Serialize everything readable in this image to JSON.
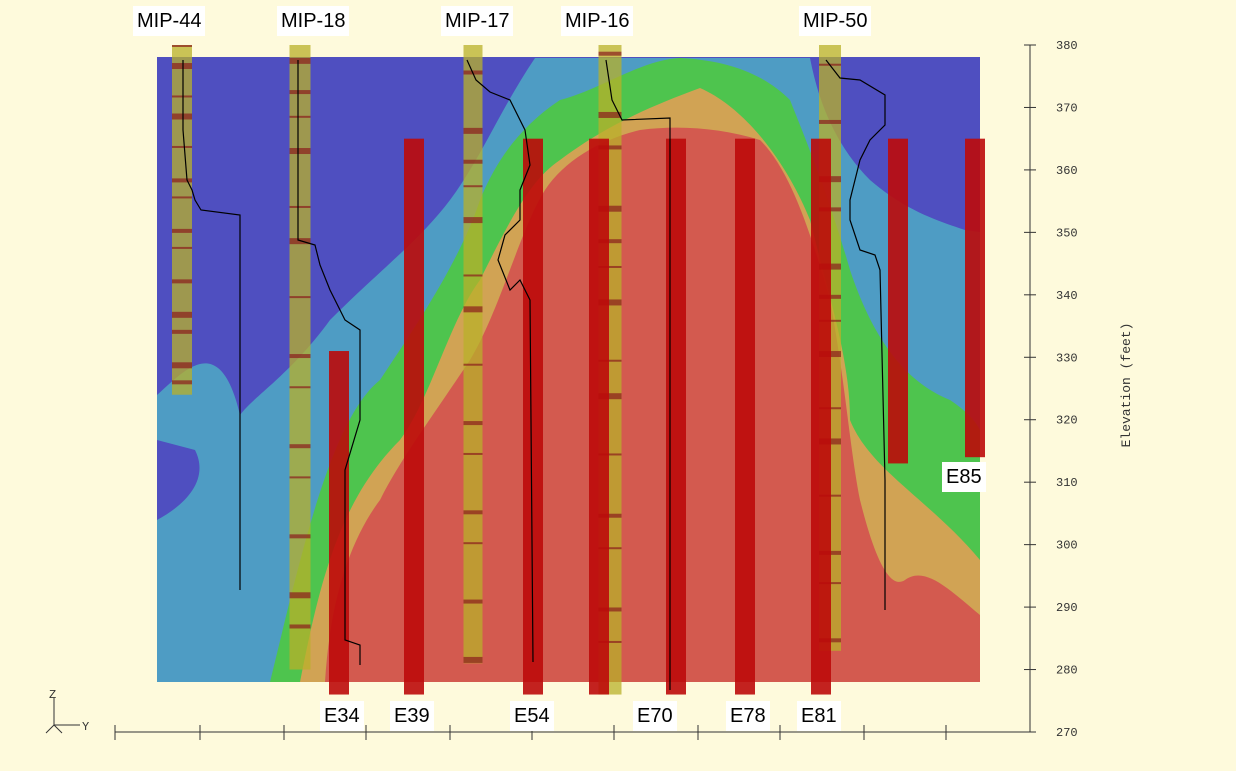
{
  "chart_data": {
    "type": "cross-section",
    "ylabel": "Elevation (feet)",
    "ylim": [
      270,
      380
    ],
    "y_ticks": [
      "380",
      "370",
      "360",
      "350",
      "340",
      "330",
      "320",
      "310",
      "300",
      "290",
      "280",
      "270"
    ],
    "axis_triad": {
      "vertical": "Z",
      "horizontal": "Y"
    },
    "colors": {
      "background": "#fefadc",
      "zone_blue": "#4f4fc0",
      "zone_teal": "#4e9cc4",
      "zone_green": "#4ec44e",
      "zone_orange": "#d1a354",
      "zone_red": "#d35a4f",
      "electrode": "#bd0a0a",
      "mip_core": "#b8b02a",
      "mip_band": "#8a1c1c"
    },
    "mip_logs": [
      {
        "name": "MIP-44",
        "top": 380,
        "bottom": 324
      },
      {
        "name": "MIP-18",
        "top": 380,
        "bottom": 280
      },
      {
        "name": "MIP-17",
        "top": 380,
        "bottom": 281
      },
      {
        "name": "MIP-16",
        "top": 380,
        "bottom": 276
      },
      {
        "name": "MIP-50",
        "top": 380,
        "bottom": 283
      }
    ],
    "electrodes": [
      {
        "name": "E34",
        "top": 331,
        "bottom": 276
      },
      {
        "name": "E39",
        "top": 365,
        "bottom": 276
      },
      {
        "name": "E54",
        "top": 365,
        "bottom": 276
      },
      {
        "name": "E70",
        "top": 365,
        "bottom": 276
      },
      {
        "name": "E78",
        "top": 365,
        "bottom": 276
      },
      {
        "name": "E81",
        "top": 365,
        "bottom": 276
      },
      {
        "name": "E85",
        "top": 365,
        "bottom": 314
      }
    ],
    "extra_electrodes": [
      {
        "top": 365,
        "bottom": 276
      },
      {
        "top": 365,
        "bottom": 313
      }
    ]
  }
}
